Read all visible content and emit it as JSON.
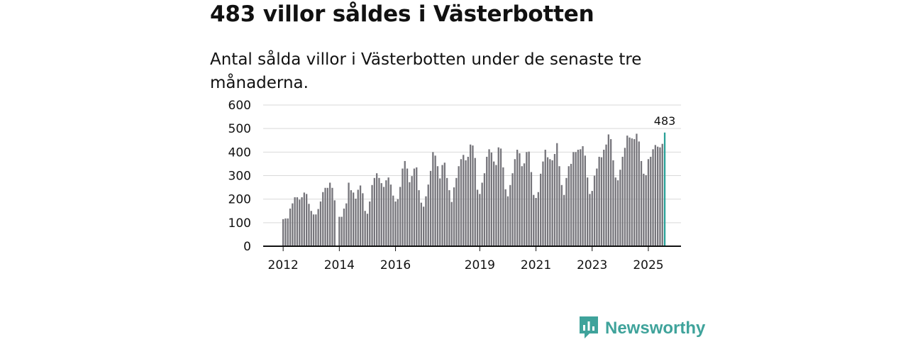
{
  "header": {
    "title": "483 villor såldes i Västerbotten",
    "subtitle": "Antal sålda villor i Västerbotten under de senaste tre månaderna."
  },
  "brand": {
    "name": "Newsworthy",
    "icon": "bar-chart-logo-icon",
    "color": "#3fa39b"
  },
  "colors": {
    "bar": "#76757b",
    "highlight": "#2aa198",
    "grid": "#d9d9d9",
    "axis": "#111111"
  },
  "chart_data": {
    "type": "bar",
    "title": "Antal sålda villor i Västerbotten under de senaste tre månaderna.",
    "xlabel": "",
    "ylabel": "",
    "ylim": [
      0,
      600
    ],
    "yticks": [
      0,
      100,
      200,
      300,
      400,
      500,
      600
    ],
    "xticks": [
      "2012",
      "2014",
      "2016",
      "2019",
      "2021",
      "2023",
      "2025"
    ],
    "period": "rolling 3 months, monthly, Jan 2012 – Aug 2025",
    "values": [
      115,
      118,
      118,
      160,
      182,
      208,
      208,
      198,
      208,
      228,
      222,
      180,
      150,
      135,
      135,
      158,
      190,
      230,
      248,
      248,
      270,
      248,
      195,
      null,
      125,
      125,
      160,
      182,
      270,
      238,
      228,
      202,
      240,
      258,
      225,
      150,
      138,
      190,
      260,
      290,
      310,
      290,
      268,
      252,
      280,
      292,
      262,
      215,
      190,
      200,
      252,
      330,
      362,
      330,
      272,
      298,
      330,
      335,
      238,
      185,
      168,
      212,
      262,
      320,
      400,
      385,
      340,
      288,
      345,
      355,
      290,
      238,
      188,
      250,
      290,
      340,
      370,
      388,
      365,
      380,
      432,
      428,
      375,
      240,
      222,
      270,
      310,
      380,
      412,
      398,
      360,
      345,
      420,
      415,
      335,
      242,
      212,
      260,
      310,
      370,
      410,
      395,
      340,
      352,
      400,
      402,
      315,
      218,
      205,
      230,
      308,
      360,
      410,
      378,
      370,
      365,
      392,
      438,
      340,
      260,
      218,
      290,
      340,
      350,
      400,
      400,
      410,
      412,
      425,
      385,
      292,
      222,
      235,
      300,
      330,
      380,
      378,
      410,
      432,
      475,
      455,
      365,
      292,
      280,
      325,
      380,
      418,
      470,
      462,
      458,
      455,
      478,
      445,
      362,
      308,
      302,
      370,
      380,
      412,
      430,
      423,
      420,
      435,
      483
    ],
    "last_value": 483,
    "last_value_label": "483"
  }
}
